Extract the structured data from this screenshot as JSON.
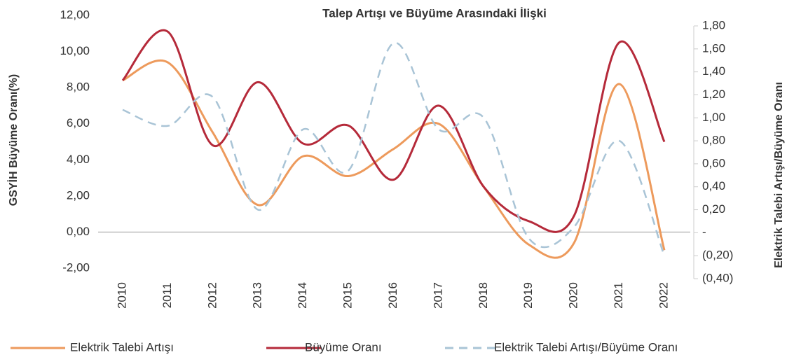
{
  "chart_data": {
    "type": "line",
    "title": "Talep Artışı ve Büyüme Arasındaki İlişki",
    "y_label": "GSYİH Büyüme Oranı(%)",
    "y2_label": "Elektrik Talebi Artışı/Büyüme Oranı",
    "categories": [
      "2010",
      "2011",
      "2012",
      "2013",
      "2014",
      "2015",
      "2016",
      "2017",
      "2018",
      "2019",
      "2020",
      "2021",
      "2022"
    ],
    "series": [
      {
        "name": "Elektrik Talebi Artışı",
        "color": "#ed9a5c",
        "dash": false,
        "values": [
          8.4,
          9.4,
          5.5,
          1.5,
          4.2,
          3.1,
          4.6,
          6.0,
          2.5,
          -0.7,
          -0.6,
          8.2,
          -1.0
        ]
      },
      {
        "name": "Büyüme Oranı",
        "color": "#b52a3a",
        "dash": false,
        "values": [
          8.4,
          11.1,
          4.8,
          8.3,
          4.9,
          5.9,
          2.9,
          7.0,
          2.5,
          0.6,
          0.9,
          10.5,
          5.0
        ]
      },
      {
        "name": "Elektrik Talebi Artışı/Büyüme Oranı",
        "color": "#a9c4d6",
        "dash": true,
        "axis": "y2",
        "values": [
          1.07,
          0.93,
          1.18,
          0.2,
          0.9,
          0.54,
          1.65,
          0.9,
          1.0,
          -0.05,
          0.05,
          0.8,
          -0.2
        ]
      }
    ],
    "ylim": [
      -2,
      12
    ],
    "yticks": [
      {
        "value": -2,
        "label": "-2,00"
      },
      {
        "value": 0,
        "label": "0,00"
      },
      {
        "value": 2,
        "label": "2,00"
      },
      {
        "value": 4,
        "label": "4,00"
      },
      {
        "value": 6,
        "label": "6,00"
      },
      {
        "value": 8,
        "label": "8,00"
      },
      {
        "value": 10,
        "label": "10,00"
      },
      {
        "value": 12,
        "label": "12,00"
      }
    ],
    "y2lim": [
      -0.4,
      1.8
    ],
    "y2ticks": [
      {
        "value": -0.4,
        "label": "(0,40)"
      },
      {
        "value": -0.2,
        "label": "(0,20)"
      },
      {
        "value": 0,
        "label": "-"
      },
      {
        "value": 0.2,
        "label": "0,20"
      },
      {
        "value": 0.4,
        "label": "0,40"
      },
      {
        "value": 0.6,
        "label": "0,60"
      },
      {
        "value": 0.8,
        "label": "0,80"
      },
      {
        "value": 1.0,
        "label": "1,00"
      },
      {
        "value": 1.2,
        "label": "1,20"
      },
      {
        "value": 1.4,
        "label": "1,40"
      },
      {
        "value": 1.6,
        "label": "1,60"
      },
      {
        "value": 1.8,
        "label": "1,80"
      }
    ]
  }
}
